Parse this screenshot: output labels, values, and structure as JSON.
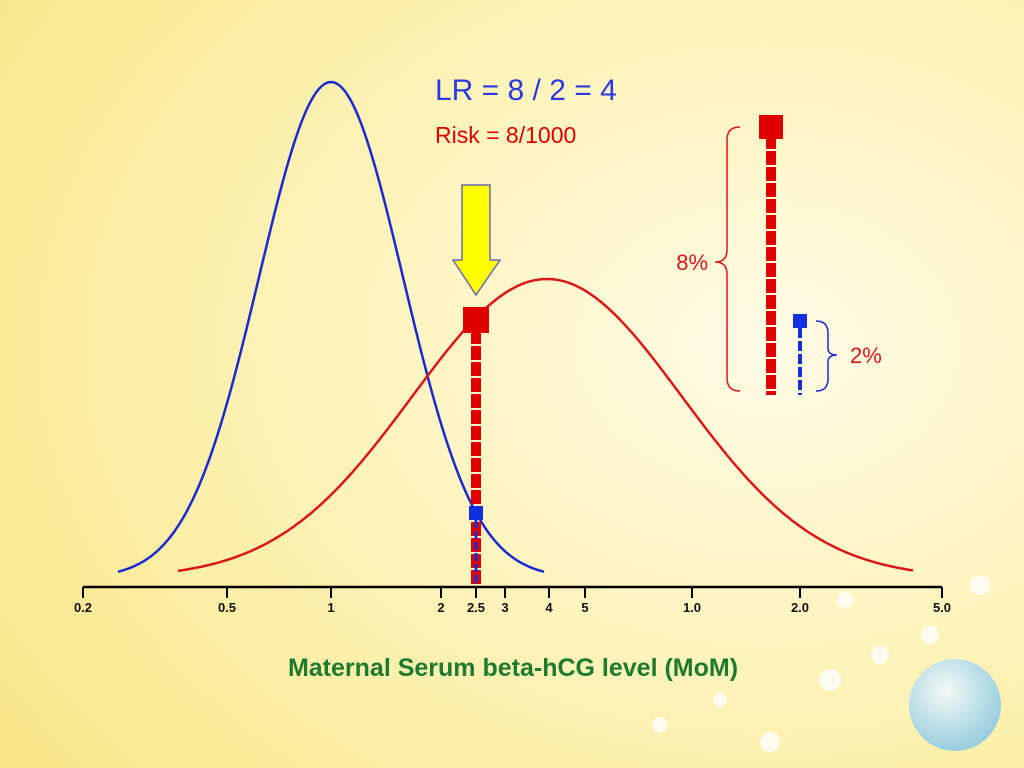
{
  "header": {
    "lr": "LR = 8 / 2 = 4",
    "risk": "Risk = 8/1000"
  },
  "axis": {
    "ticks": [
      "0.2",
      "0.5",
      "1",
      "2",
      "2.5",
      "3",
      "4",
      "5",
      "1.0",
      "2.0",
      "5.0"
    ],
    "label": "Maternal Serum beta-hCG level (MoM)"
  },
  "brackets": {
    "affected": "8%",
    "unaffected": "2%"
  }
}
